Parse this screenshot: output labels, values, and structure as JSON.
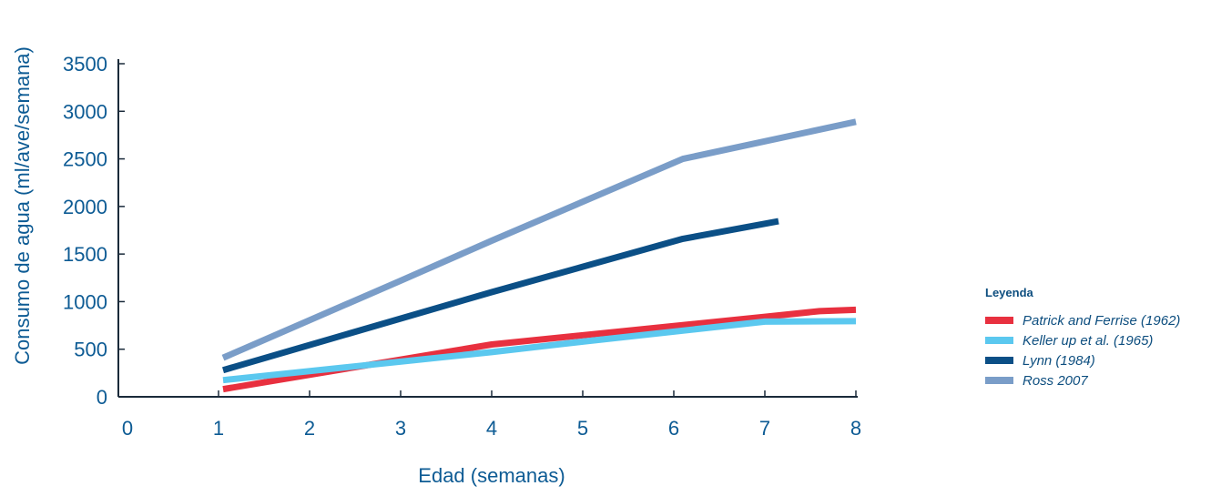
{
  "chart_data": {
    "type": "line",
    "title": "",
    "xlabel": "Edad (semanas)",
    "ylabel": "Consumo de agua (ml/ave/semana)",
    "xlim": [
      0,
      8
    ],
    "ylim": [
      0,
      3500
    ],
    "xticks": [
      0,
      1,
      2,
      3,
      4,
      5,
      6,
      7,
      8
    ],
    "yticks": [
      0,
      500,
      1000,
      1500,
      2000,
      2500,
      3000,
      3500
    ],
    "grid": false,
    "legend_title": "Leyenda",
    "legend_position": "right",
    "series": [
      {
        "name": "Patrick and Ferrise (1962)",
        "color": "#e8303f",
        "points": [
          [
            1.05,
            80
          ],
          [
            4,
            550
          ],
          [
            7,
            840
          ],
          [
            7.6,
            900
          ],
          [
            8,
            915
          ]
        ]
      },
      {
        "name": "Keller up et al. (1965)",
        "color": "#5bc8ef",
        "points": [
          [
            1.05,
            175
          ],
          [
            4,
            470
          ],
          [
            5,
            580
          ],
          [
            7,
            790
          ],
          [
            8,
            795
          ]
        ]
      },
      {
        "name": "Lynn (1984)",
        "color": "#0b4f86",
        "points": [
          [
            1.05,
            280
          ],
          [
            4,
            1100
          ],
          [
            6.1,
            1660
          ],
          [
            7.15,
            1845
          ]
        ]
      },
      {
        "name": "Ross 2007",
        "color": "#7a9dc8",
        "points": [
          [
            1.05,
            410
          ],
          [
            3,
            1220
          ],
          [
            4,
            1640
          ],
          [
            6.1,
            2500
          ],
          [
            8,
            2890
          ]
        ]
      }
    ]
  }
}
